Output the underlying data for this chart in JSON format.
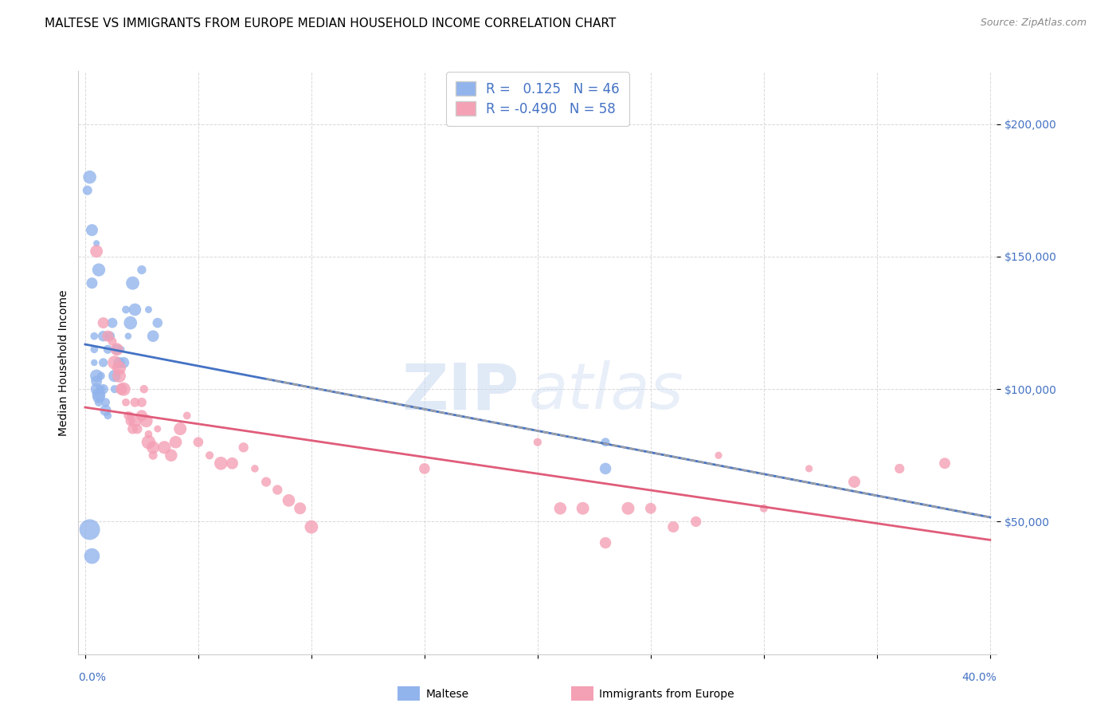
{
  "title": "MALTESE VS IMMIGRANTS FROM EUROPE MEDIAN HOUSEHOLD INCOME CORRELATION CHART",
  "source": "Source: ZipAtlas.com",
  "ylabel": "Median Household Income",
  "yticks": [
    50000,
    100000,
    150000,
    200000
  ],
  "ytick_labels": [
    "$50,000",
    "$100,000",
    "$150,000",
    "$200,000"
  ],
  "xlim": [
    0.0,
    0.4
  ],
  "ylim": [
    0,
    220000
  ],
  "blue_R": "0.125",
  "blue_N": "46",
  "pink_R": "-0.490",
  "pink_N": "58",
  "blue_color": "#92b4ec",
  "pink_color": "#f4a0b5",
  "trend_blue_color": "#4472c4",
  "trend_pink_color": "#e05c7a",
  "trend_gray_color": "#a0a0a0",
  "watermark_zip": "ZIP",
  "watermark_atlas": "atlas",
  "blue_x": [
    0.001,
    0.002,
    0.003,
    0.003,
    0.004,
    0.004,
    0.004,
    0.005,
    0.005,
    0.005,
    0.006,
    0.006,
    0.006,
    0.006,
    0.007,
    0.007,
    0.008,
    0.008,
    0.008,
    0.009,
    0.009,
    0.01,
    0.01,
    0.011,
    0.012,
    0.013,
    0.013,
    0.014,
    0.015,
    0.016,
    0.017,
    0.018,
    0.019,
    0.02,
    0.021,
    0.022,
    0.025,
    0.028,
    0.03,
    0.032,
    0.002,
    0.003,
    0.005,
    0.006,
    0.23,
    0.23
  ],
  "blue_y": [
    175000,
    180000,
    160000,
    140000,
    120000,
    115000,
    110000,
    105000,
    103000,
    100000,
    100000,
    98000,
    97000,
    95000,
    105000,
    100000,
    110000,
    120000,
    100000,
    95000,
    92000,
    90000,
    115000,
    120000,
    125000,
    105000,
    100000,
    115000,
    110000,
    115000,
    110000,
    130000,
    120000,
    125000,
    140000,
    130000,
    145000,
    130000,
    120000,
    125000,
    47000,
    37000,
    155000,
    145000,
    80000,
    70000
  ],
  "pink_x": [
    0.005,
    0.008,
    0.01,
    0.012,
    0.013,
    0.014,
    0.015,
    0.015,
    0.016,
    0.017,
    0.018,
    0.019,
    0.02,
    0.02,
    0.021,
    0.022,
    0.022,
    0.023,
    0.025,
    0.025,
    0.026,
    0.027,
    0.028,
    0.028,
    0.03,
    0.03,
    0.032,
    0.035,
    0.038,
    0.04,
    0.042,
    0.045,
    0.05,
    0.055,
    0.06,
    0.065,
    0.07,
    0.075,
    0.08,
    0.085,
    0.09,
    0.095,
    0.1,
    0.15,
    0.2,
    0.21,
    0.22,
    0.23,
    0.24,
    0.25,
    0.26,
    0.27,
    0.28,
    0.3,
    0.32,
    0.34,
    0.36,
    0.38
  ],
  "pink_y": [
    152000,
    125000,
    120000,
    118000,
    110000,
    115000,
    108000,
    105000,
    100000,
    100000,
    95000,
    90000,
    90000,
    88000,
    85000,
    95000,
    88000,
    85000,
    95000,
    90000,
    100000,
    88000,
    83000,
    80000,
    78000,
    75000,
    85000,
    78000,
    75000,
    80000,
    85000,
    90000,
    80000,
    75000,
    72000,
    72000,
    78000,
    70000,
    65000,
    62000,
    58000,
    55000,
    48000,
    70000,
    80000,
    55000,
    55000,
    42000,
    55000,
    55000,
    48000,
    50000,
    75000,
    55000,
    70000,
    65000,
    70000,
    72000
  ],
  "legend_fontsize": 12,
  "title_fontsize": 11,
  "axis_label_fontsize": 10,
  "tick_fontsize": 10
}
